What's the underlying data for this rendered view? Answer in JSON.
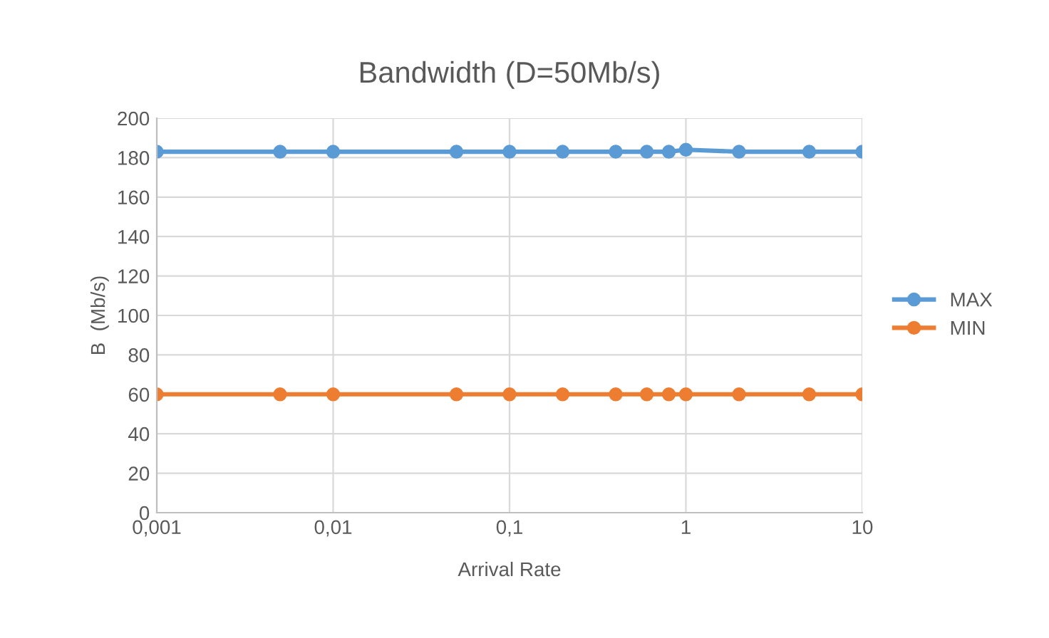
{
  "chart_data": {
    "type": "line",
    "title": "Bandwidth (D=50Mb/s)",
    "xlabel": "Arrival Rate",
    "ylabel": "B  (Mb/s)",
    "x": [
      0.001,
      0.005,
      0.01,
      0.05,
      0.1,
      0.2,
      0.4,
      0.6,
      0.8,
      1,
      2,
      5,
      10
    ],
    "series": [
      {
        "name": "MAX",
        "color": "#5b9bd5",
        "values": [
          183,
          183,
          183,
          183,
          183,
          183,
          183,
          183,
          183,
          184,
          183,
          183,
          183
        ]
      },
      {
        "name": "MIN",
        "color": "#ed7d31",
        "values": [
          60,
          60,
          60,
          60,
          60,
          60,
          60,
          60,
          60,
          60,
          60,
          60,
          60
        ]
      }
    ],
    "log": "x",
    "xlim": [
      0.001,
      10
    ],
    "xticks": [
      {
        "value": 0.001,
        "label": "0,001"
      },
      {
        "value": 0.01,
        "label": "0,01"
      },
      {
        "value": 0.1,
        "label": "0,1"
      },
      {
        "value": 1,
        "label": "1"
      },
      {
        "value": 10,
        "label": "10"
      }
    ],
    "ylim": [
      0,
      200
    ],
    "yticks": [
      0,
      20,
      40,
      60,
      80,
      100,
      120,
      140,
      160,
      180,
      200
    ],
    "grid": true,
    "legend": "right",
    "marker": "circle",
    "line_style": "solid"
  }
}
